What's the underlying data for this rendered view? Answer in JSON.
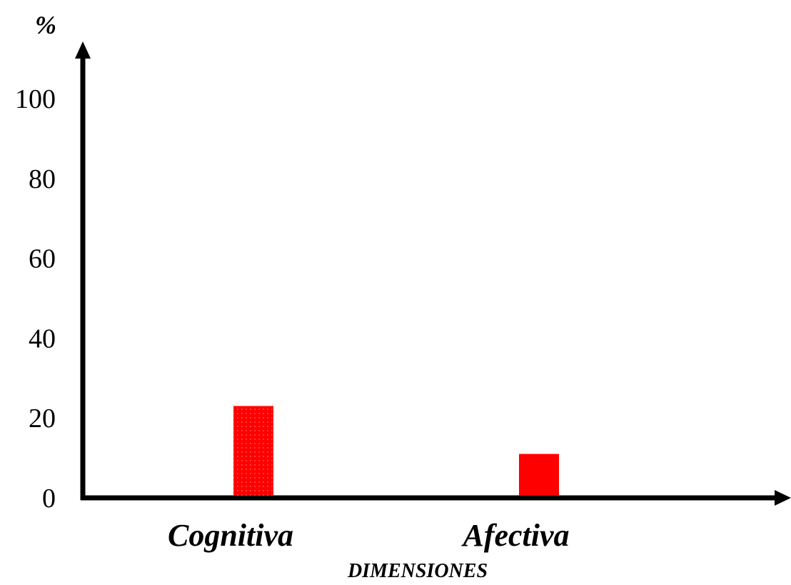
{
  "chart_data": {
    "type": "bar",
    "categories": [
      "Cognitiva",
      "Afectiva"
    ],
    "values": [
      23,
      11
    ],
    "xlabel": "DIMENSIONES",
    "ylabel": "%",
    "yticks": [
      "0",
      "20",
      "40",
      "60",
      "80",
      "100"
    ],
    "ylim": [
      0,
      100
    ],
    "grid": false,
    "legend": "none",
    "bar_color": "#ff0000",
    "axis_color": "#000000"
  }
}
